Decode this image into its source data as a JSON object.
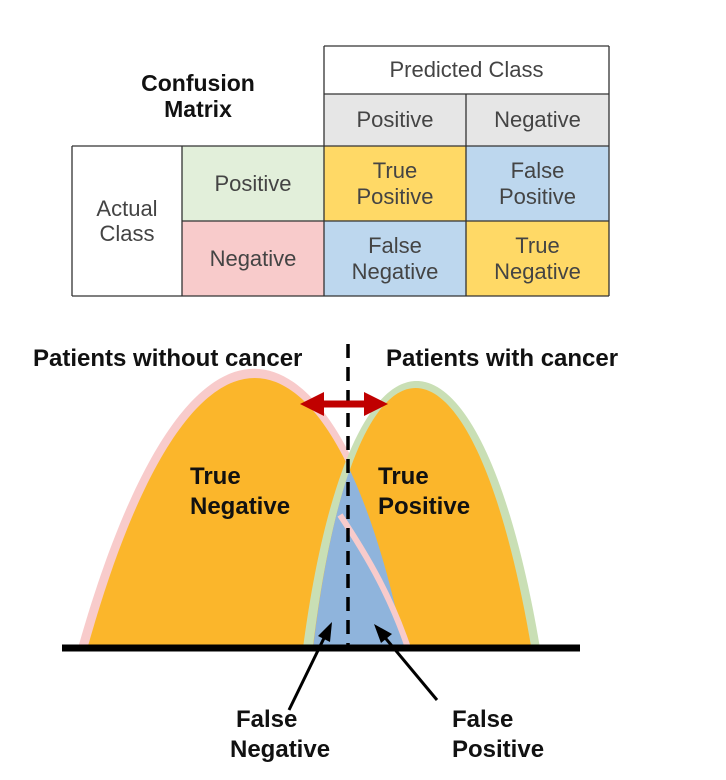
{
  "matrix": {
    "title_line1": "Confusion",
    "title_line2": "Matrix",
    "predicted_header": "Predicted Class",
    "pred_positive": "Positive",
    "pred_negative": "Negative",
    "actual_line1": "Actual",
    "actual_line2": "Class",
    "actual_positive": "Positive",
    "actual_negative": "Negative",
    "tp": [
      "True",
      "Positive"
    ],
    "fp": [
      "False",
      "Positive"
    ],
    "fn": [
      "False",
      "Negative"
    ],
    "tn": [
      "True",
      "Negative"
    ]
  },
  "diagram": {
    "left_label": "Patients without cancer",
    "right_label": "Patients with cancer",
    "tn": [
      "True",
      "Negative"
    ],
    "tp": [
      "True",
      "Positive"
    ],
    "fn": [
      "False",
      "Negative"
    ],
    "fp": [
      "False",
      "Positive"
    ]
  },
  "colors": {
    "header_gray": "#e6e6e6",
    "green": "#e2efda",
    "pink": "#f8cbcb",
    "yellow": "#ffd966",
    "blue": "#bdd7ee",
    "orange": "#fbb62b",
    "overlap_blue": "#8fb4dc",
    "arrow_red": "#c00000"
  }
}
